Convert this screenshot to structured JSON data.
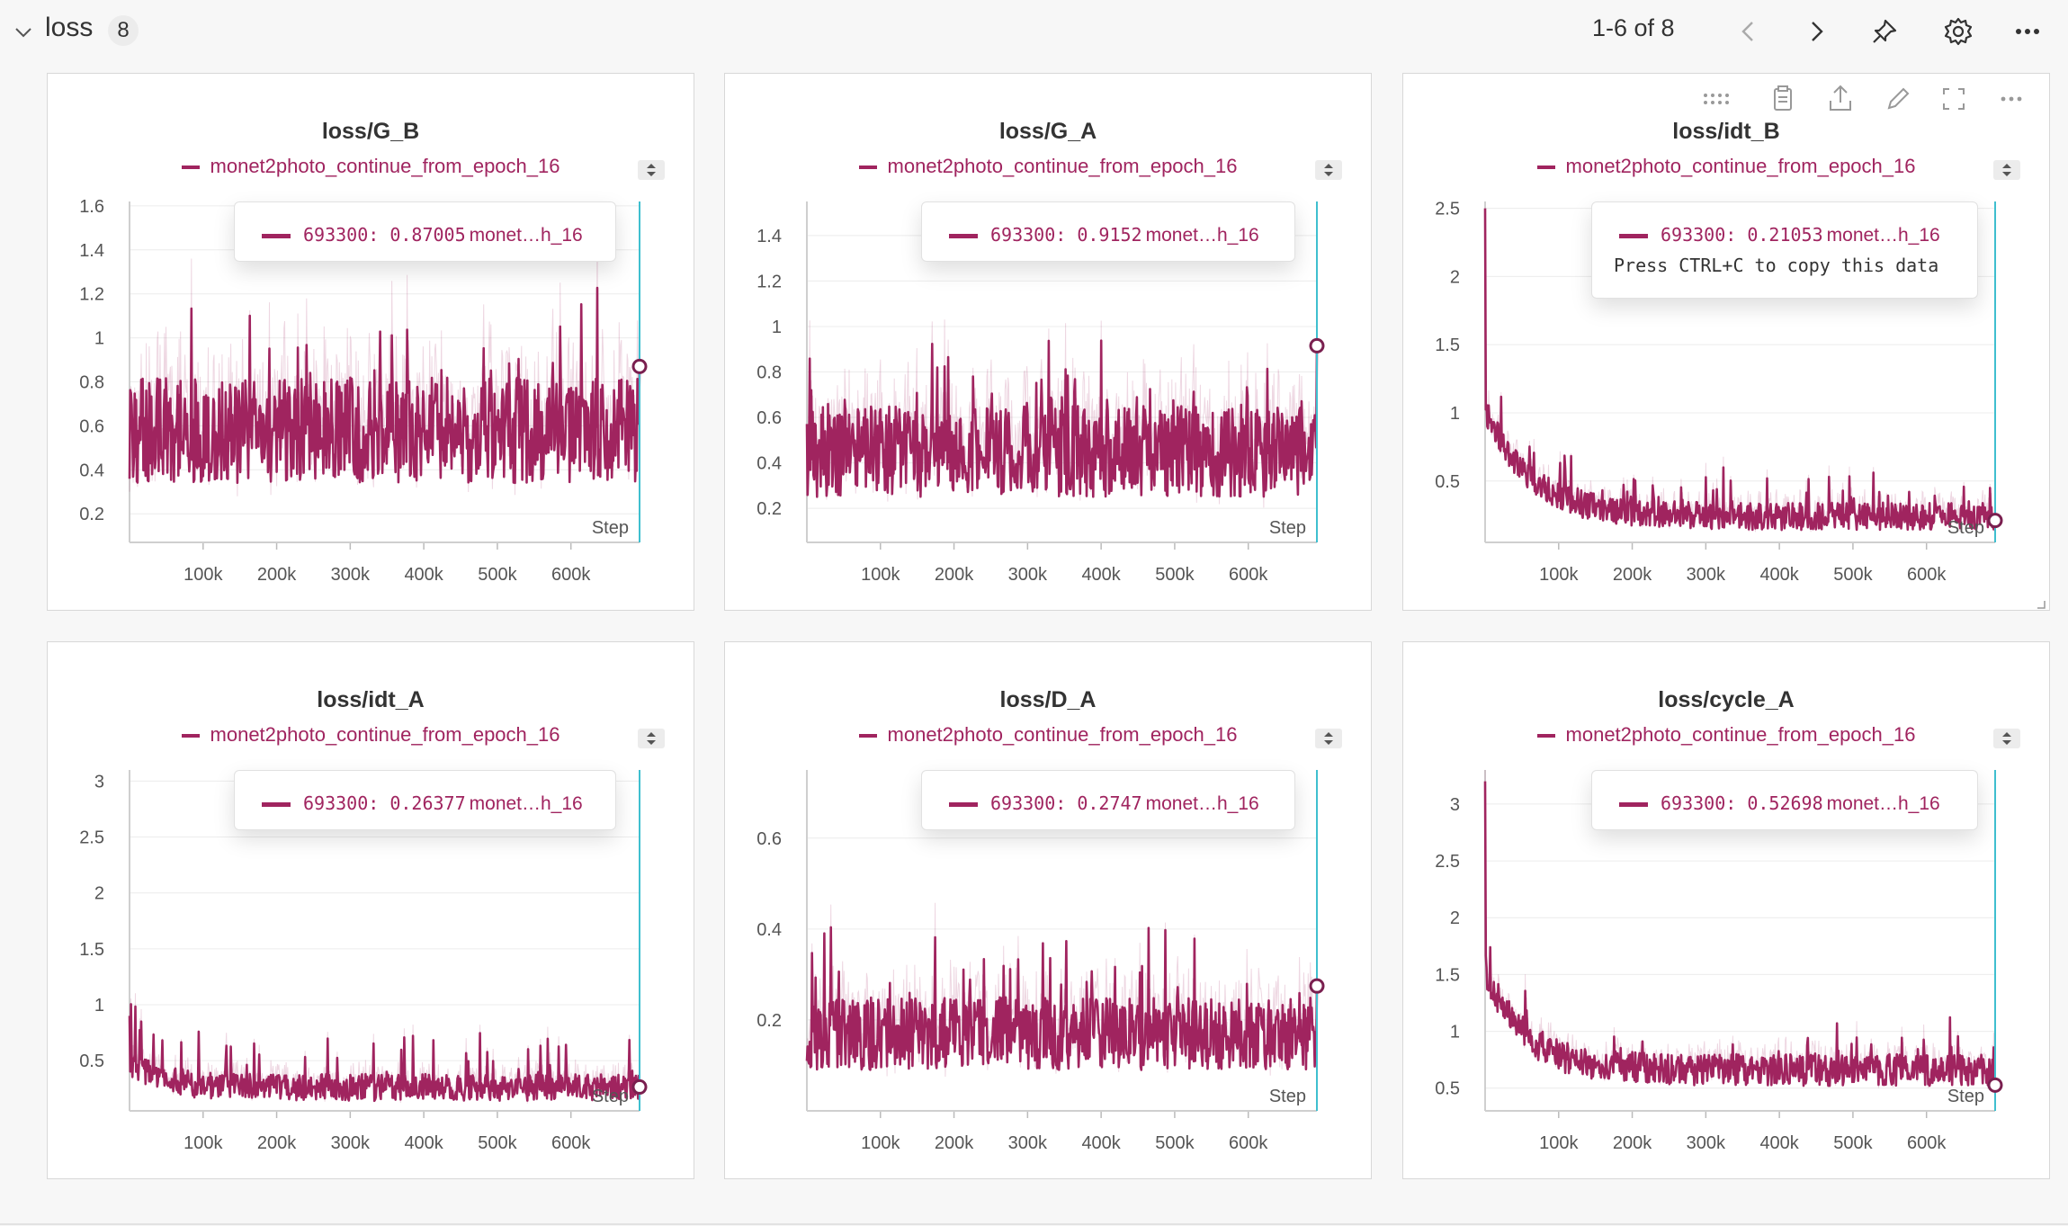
{
  "section": {
    "title": "loss",
    "count": "8"
  },
  "pager": {
    "text": "1-6 of 8"
  },
  "toolbar_icons": [
    "chevron-left-icon",
    "chevron-right-icon",
    "pin-icon",
    "gear-icon",
    "more-icon"
  ],
  "panel_tool_icons": [
    "drag-handle-icon",
    "clipboard-icon",
    "share-icon",
    "edit-icon",
    "fullscreen-icon",
    "more-icon"
  ],
  "colors": {
    "series": "#a0245f",
    "cursor": "#3fbfcf"
  },
  "chart_data": [
    {
      "type": "line",
      "title": "loss/G_B",
      "xlabel": "Step",
      "legend": "monet2photo_continue_from_epoch_16",
      "x_range": [
        0,
        693300
      ],
      "x_ticks": [
        100000,
        200000,
        300000,
        400000,
        500000,
        600000
      ],
      "x_tick_labels": [
        "100k",
        "200k",
        "300k",
        "400k",
        "500k",
        "600k"
      ],
      "y_range": [
        0.07,
        1.62
      ],
      "y_ticks": [
        0.2,
        0.4,
        0.6,
        0.8,
        1,
        1.2,
        1.4,
        1.6
      ],
      "y_tick_labels": [
        "0.2",
        "0.4",
        "0.6",
        "0.8",
        "1",
        "1.2",
        "1.4",
        "1.6"
      ],
      "series": [
        {
          "name": "monet2photo_continue_from_epoch_16",
          "shape": {
            "base": 0.58,
            "amp": 0.24,
            "spike": 0.42,
            "decay": 0,
            "start": 0.58,
            "min": 0.12,
            "seed": 3
          },
          "last": {
            "step": 693300,
            "value": 0.87005,
            "label": "0.87005",
            "run_short": "monet…h_16"
          }
        }
      ],
      "tooltip": {
        "step": "693300",
        "value": "0.87005",
        "run": "monet…h_16"
      }
    },
    {
      "type": "line",
      "title": "loss/G_A",
      "xlabel": "Step",
      "legend": "monet2photo_continue_from_epoch_16",
      "x_range": [
        0,
        693300
      ],
      "x_ticks": [
        100000,
        200000,
        300000,
        400000,
        500000,
        600000
      ],
      "x_tick_labels": [
        "100k",
        "200k",
        "300k",
        "400k",
        "500k",
        "600k"
      ],
      "y_range": [
        0.05,
        1.55
      ],
      "y_ticks": [
        0.2,
        0.4,
        0.6,
        0.8,
        1,
        1.2,
        1.4
      ],
      "y_tick_labels": [
        "0.2",
        "0.4",
        "0.6",
        "0.8",
        "1",
        "1.2",
        "1.4"
      ],
      "series": [
        {
          "name": "monet2photo_continue_from_epoch_16",
          "shape": {
            "base": 0.45,
            "amp": 0.2,
            "spike": 0.4,
            "decay": 0,
            "start": 0.45,
            "min": 0.08,
            "seed": 7
          },
          "last": {
            "step": 693300,
            "value": 0.9152,
            "label": "0.9152",
            "run_short": "monet…h_16"
          }
        }
      ],
      "tooltip": {
        "step": "693300",
        "value": "0.9152",
        "run": "monet…h_16"
      }
    },
    {
      "type": "line",
      "title": "loss/idt_B",
      "xlabel": "Step",
      "legend": "monet2photo_continue_from_epoch_16",
      "x_range": [
        0,
        693300
      ],
      "x_ticks": [
        100000,
        200000,
        300000,
        400000,
        500000,
        600000
      ],
      "x_tick_labels": [
        "100k",
        "200k",
        "300k",
        "400k",
        "500k",
        "600k"
      ],
      "y_range": [
        0.05,
        2.55
      ],
      "y_ticks": [
        0.5,
        1,
        1.5,
        2,
        2.5
      ],
      "y_tick_labels": [
        "0.5",
        "1",
        "1.5",
        "2",
        "2.5"
      ],
      "series": [
        {
          "name": "monet2photo_continue_from_epoch_16",
          "shape": {
            "base": 0.24,
            "amp": 0.1,
            "spike": 0.28,
            "decay": 0.35,
            "start": 2.5,
            "min": 0.1,
            "seed": 11
          },
          "last": {
            "step": 693300,
            "value": 0.21053,
            "label": "0.21053",
            "run_short": "monet…h_16"
          }
        }
      ],
      "tooltip": {
        "step": "693300",
        "value": "0.21053",
        "run": "monet…h_16",
        "hint": "Press CTRL+C to copy this data"
      }
    },
    {
      "type": "line",
      "title": "loss/idt_A",
      "xlabel": "Step",
      "legend": "monet2photo_continue_from_epoch_16",
      "x_range": [
        0,
        693300
      ],
      "x_ticks": [
        100000,
        200000,
        300000,
        400000,
        500000,
        600000
      ],
      "x_tick_labels": [
        "100k",
        "200k",
        "300k",
        "400k",
        "500k",
        "600k"
      ],
      "y_range": [
        0.05,
        3.1
      ],
      "y_ticks": [
        0.5,
        1,
        1.5,
        2,
        2.5,
        3
      ],
      "y_tick_labels": [
        "0.5",
        "1",
        "1.5",
        "2",
        "2.5",
        "3"
      ],
      "series": [
        {
          "name": "monet2photo_continue_from_epoch_16",
          "shape": {
            "base": 0.26,
            "amp": 0.12,
            "spike": 0.5,
            "decay": 0.25,
            "start": 0.9,
            "min": 0.1,
            "seed": 19
          },
          "last": {
            "step": 693300,
            "value": 0.26377,
            "label": "0.26377",
            "run_short": "monet…h_16"
          }
        }
      ],
      "tooltip": {
        "step": "693300",
        "value": "0.26377",
        "run": "monet…h_16"
      }
    },
    {
      "type": "line",
      "title": "loss/D_A",
      "xlabel": "Step",
      "legend": "monet2photo_continue_from_epoch_16",
      "x_range": [
        0,
        693300
      ],
      "x_ticks": [
        100000,
        200000,
        300000,
        400000,
        500000,
        600000
      ],
      "x_tick_labels": [
        "100k",
        "200k",
        "300k",
        "400k",
        "500k",
        "600k"
      ],
      "y_range": [
        0.0,
        0.75
      ],
      "y_ticks": [
        0.2,
        0.4,
        0.6
      ],
      "y_tick_labels": [
        "0.2",
        "0.4",
        "0.6"
      ],
      "series": [
        {
          "name": "monet2photo_continue_from_epoch_16",
          "shape": {
            "base": 0.17,
            "amp": 0.08,
            "spike": 0.18,
            "decay": 0,
            "start": 0.2,
            "min": 0.02,
            "seed": 23
          },
          "last": {
            "step": 693300,
            "value": 0.2747,
            "label": "0.2747",
            "run_short": "monet…h_16"
          }
        }
      ],
      "tooltip": {
        "step": "693300",
        "value": "0.2747",
        "run": "monet…h_16"
      }
    },
    {
      "type": "line",
      "title": "loss/cycle_A",
      "xlabel": "Step",
      "legend": "monet2photo_continue_from_epoch_16",
      "x_range": [
        0,
        693300
      ],
      "x_ticks": [
        100000,
        200000,
        300000,
        400000,
        500000,
        600000
      ],
      "x_tick_labels": [
        "100k",
        "200k",
        "300k",
        "400k",
        "500k",
        "600k"
      ],
      "y_range": [
        0.3,
        3.3
      ],
      "y_ticks": [
        0.5,
        1,
        1.5,
        2,
        2.5,
        3
      ],
      "y_tick_labels": [
        "0.5",
        "1",
        "1.5",
        "2",
        "2.5",
        "3"
      ],
      "series": [
        {
          "name": "monet2photo_continue_from_epoch_16",
          "shape": {
            "base": 0.66,
            "amp": 0.14,
            "spike": 0.35,
            "decay": 0.3,
            "start": 3.2,
            "min": 0.42,
            "seed": 31
          },
          "last": {
            "step": 693300,
            "value": 0.52698,
            "label": "0.52698",
            "run_short": "monet…h_16"
          }
        }
      ],
      "tooltip": {
        "step": "693300",
        "value": "0.52698",
        "run": "monet…h_16"
      }
    }
  ]
}
